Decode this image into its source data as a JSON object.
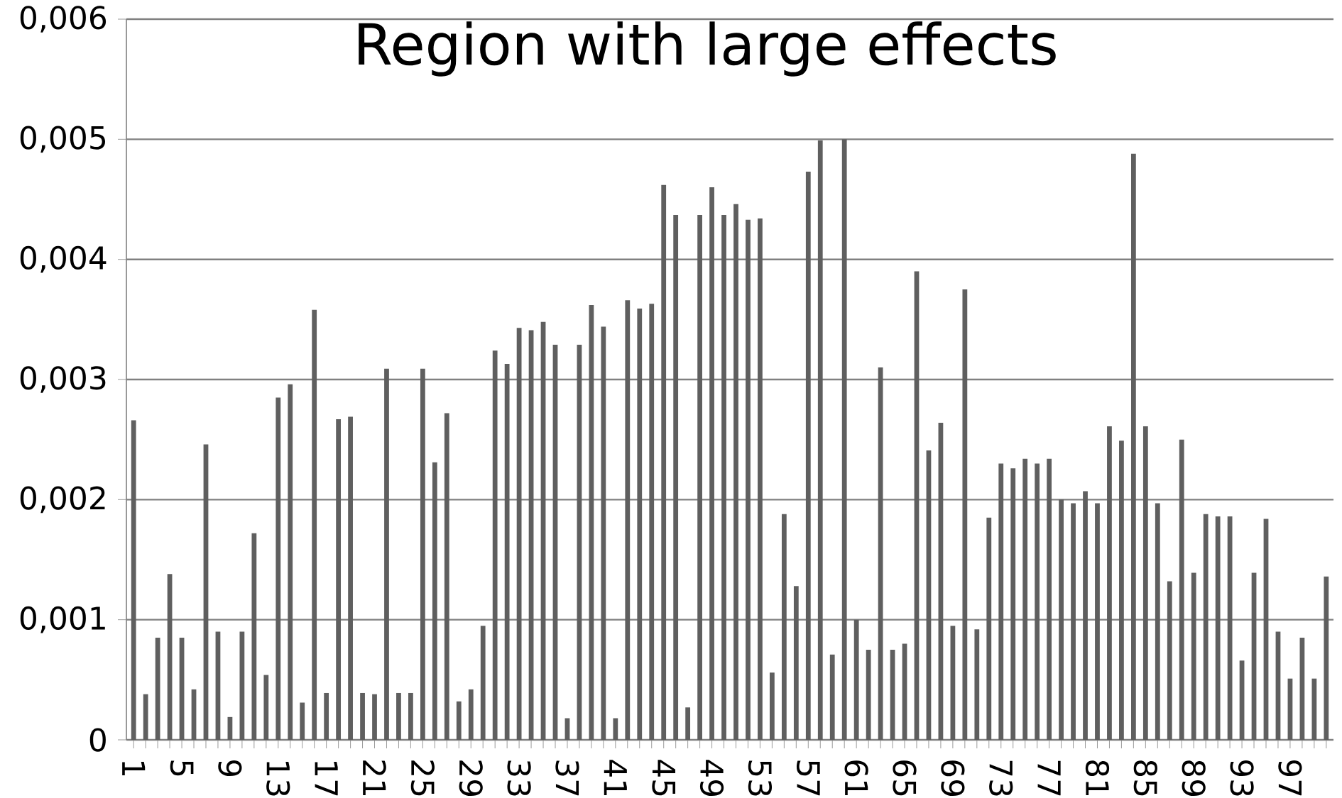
{
  "chart_data": {
    "type": "bar",
    "title": "Region with large effects",
    "categories": [
      "1",
      null,
      null,
      null,
      "5",
      null,
      null,
      null,
      "9",
      null,
      null,
      null,
      "13",
      null,
      null,
      null,
      "17",
      null,
      null,
      null,
      "21",
      null,
      null,
      null,
      "25",
      null,
      null,
      null,
      "29",
      null,
      null,
      null,
      "33",
      null,
      null,
      null,
      "37",
      null,
      null,
      null,
      "41",
      null,
      null,
      null,
      "45",
      null,
      null,
      null,
      "49",
      null,
      null,
      null,
      "53",
      null,
      null,
      null,
      "57",
      null,
      null,
      null,
      "61",
      null,
      null,
      null,
      "65",
      null,
      null,
      null,
      "69",
      null,
      null,
      null,
      "73",
      null,
      null,
      null,
      "77",
      null,
      null,
      null,
      "81",
      null,
      null,
      null,
      "85",
      null,
      null,
      null,
      "89",
      null,
      null,
      null,
      "93",
      null,
      null,
      null,
      "97",
      null,
      null,
      null
    ],
    "values": [
      0.00266,
      0.00038,
      0.00085,
      0.00138,
      0.00085,
      0.00042,
      0.00246,
      0.0009,
      0.00019,
      0.0009,
      0.00172,
      0.00054,
      0.00285,
      0.00296,
      0.00031,
      0.00358,
      0.00039,
      0.00267,
      0.00269,
      0.00039,
      0.00038,
      0.00309,
      0.00039,
      0.00039,
      0.00309,
      0.00231,
      0.00272,
      0.00032,
      0.00042,
      0.00095,
      0.00324,
      0.00313,
      0.00343,
      0.00341,
      0.00348,
      0.00329,
      0.00018,
      0.00329,
      0.00362,
      0.00344,
      0.00018,
      0.00366,
      0.00359,
      0.00363,
      0.00462,
      0.00437,
      0.00027,
      0.00437,
      0.0046,
      0.00437,
      0.00446,
      0.00433,
      0.00434,
      0.00056,
      0.00188,
      0.00128,
      0.00473,
      0.00499,
      0.00071,
      0.005,
      0.001,
      0.00075,
      0.0031,
      0.00075,
      0.0008,
      0.0039,
      0.00241,
      0.00264,
      0.00095,
      0.00375,
      0.00092,
      0.00185,
      0.0023,
      0.00226,
      0.00234,
      0.0023,
      0.00234,
      0.002,
      0.00197,
      0.00207,
      0.00197,
      0.00261,
      0.00249,
      0.00488,
      0.00261,
      0.00197,
      0.00132,
      0.0025,
      0.00139,
      0.00188,
      0.00186,
      0.00186,
      0.00066,
      0.00139,
      0.00184,
      0.0009,
      0.00051,
      0.00085,
      0.00051,
      0.00136
    ],
    "color": "#5f5f5f",
    "ylim": [
      0,
      0.006
    ],
    "yticks": [
      {
        "value": 0,
        "label": "0"
      },
      {
        "value": 0.001,
        "label": "0,001"
      },
      {
        "value": 0.002,
        "label": "0,002"
      },
      {
        "value": 0.003,
        "label": "0,003"
      },
      {
        "value": 0.004,
        "label": "0,004"
      },
      {
        "value": 0.005,
        "label": "0,005"
      },
      {
        "value": 0.006,
        "label": "0,006"
      }
    ],
    "grid": "y"
  }
}
